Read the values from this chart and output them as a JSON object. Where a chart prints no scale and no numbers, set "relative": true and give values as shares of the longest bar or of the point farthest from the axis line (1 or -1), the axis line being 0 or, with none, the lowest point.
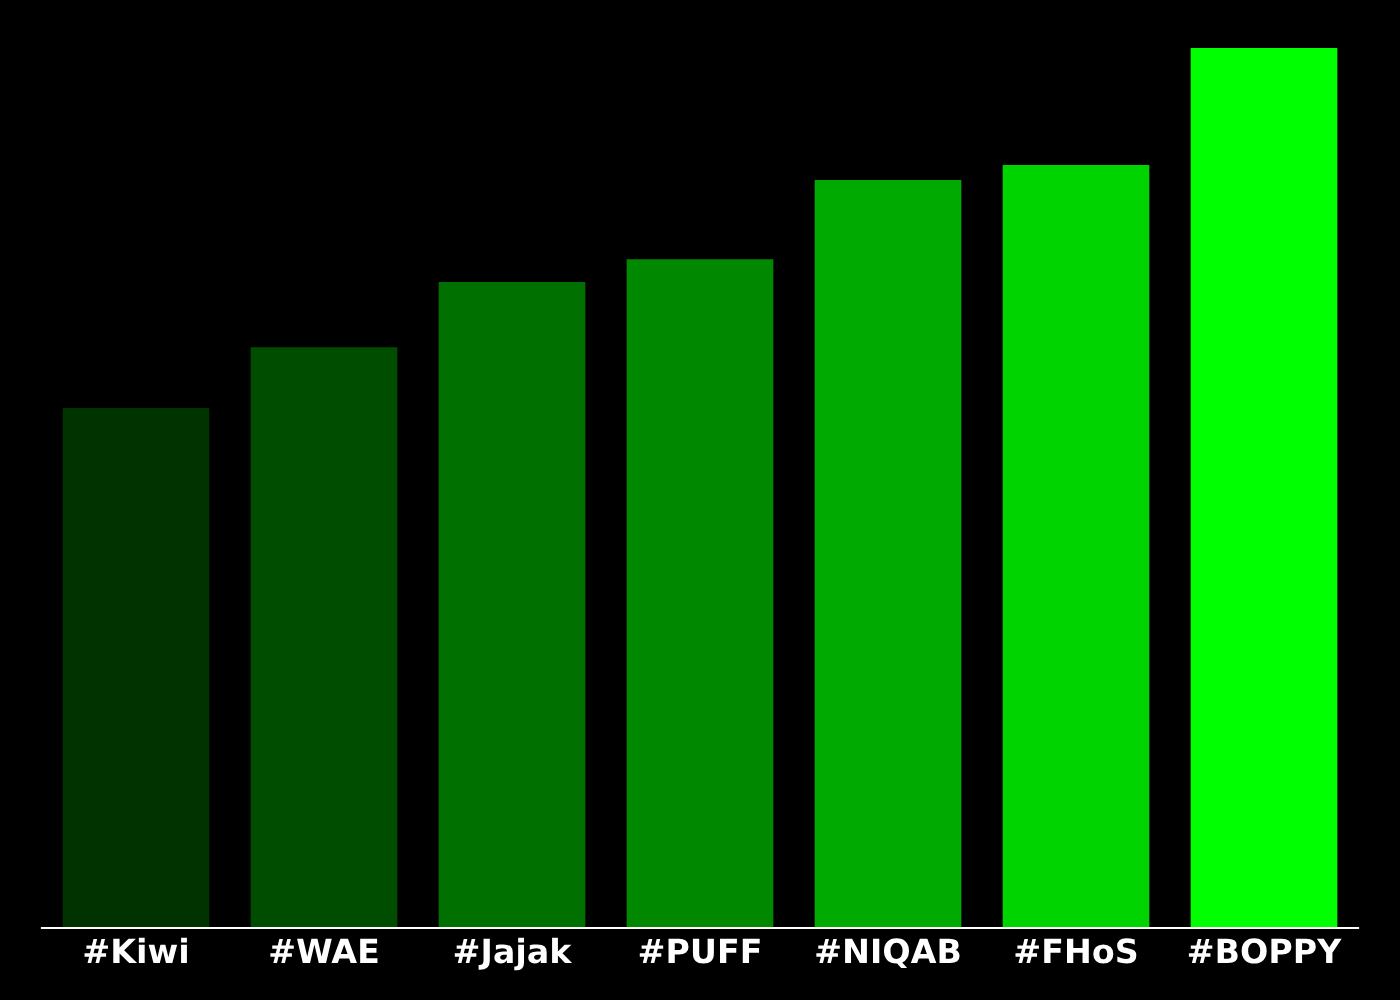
{
  "chart_data": {
    "type": "bar",
    "relative": true,
    "categories": [
      "#Kiwi",
      "#WAE",
      "#Jajak",
      "#PUFF",
      "#NIQAB",
      "#FHoS",
      "#BOPPY"
    ],
    "values": [
      0.591,
      0.66,
      0.734,
      0.76,
      0.85,
      0.867,
      1
    ],
    "colors": [
      "#003300",
      "#004d00",
      "#007000",
      "#008800",
      "#00aa00",
      "#00d400",
      "#00ff00"
    ],
    "grid": false,
    "legend": false
  }
}
